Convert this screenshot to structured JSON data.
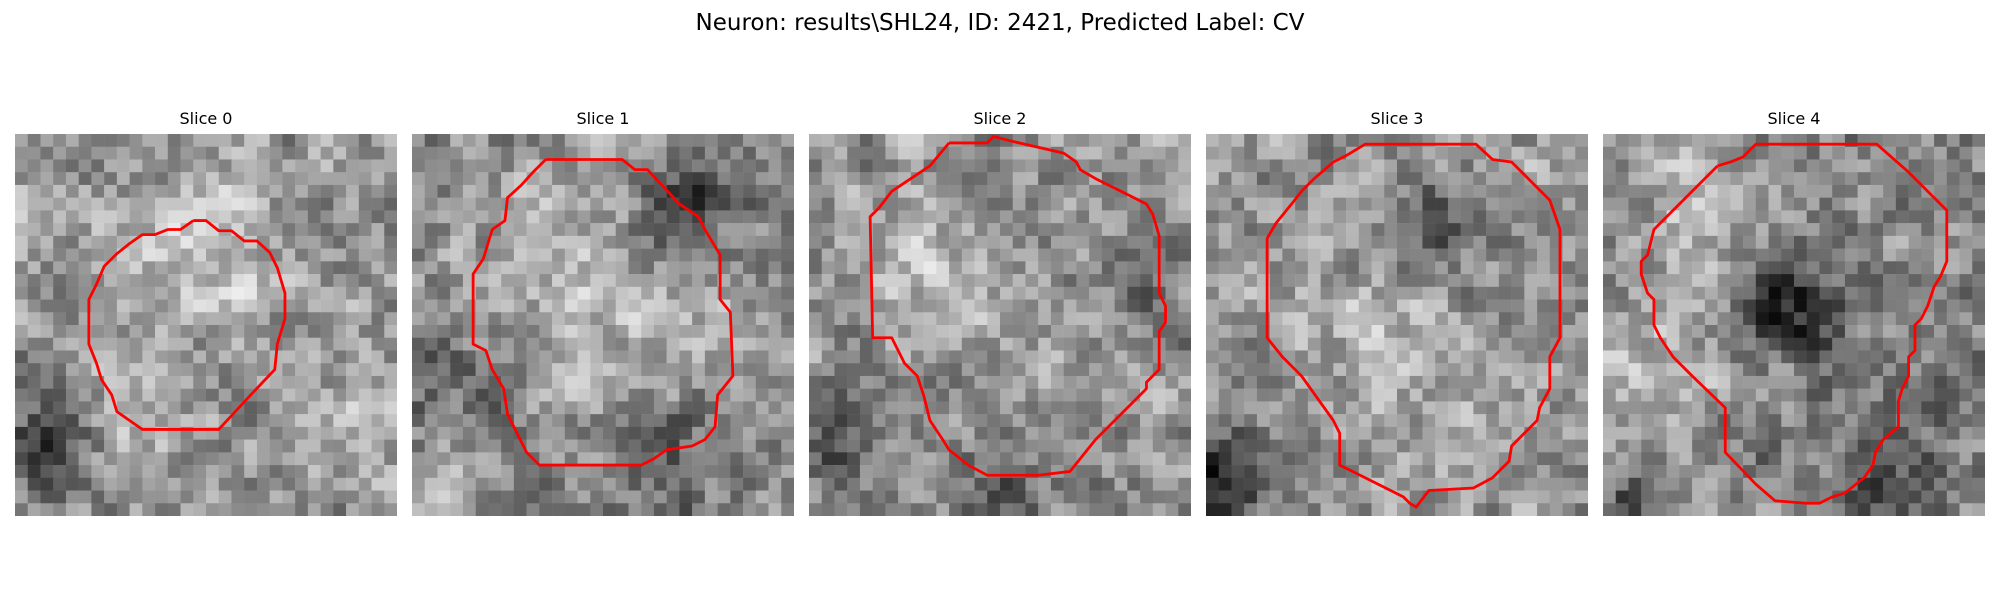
{
  "figure": {
    "title": "Neuron: results\\SHL24, ID: 2421, Predicted Label: CV"
  },
  "panels": [
    {
      "title": "Slice 0"
    },
    {
      "title": "Slice 1"
    },
    {
      "title": "Slice 2"
    },
    {
      "title": "Slice 3"
    },
    {
      "title": "Slice 4"
    }
  ],
  "colors": {
    "contour": "#ff0000",
    "background": "#ffffff"
  }
}
